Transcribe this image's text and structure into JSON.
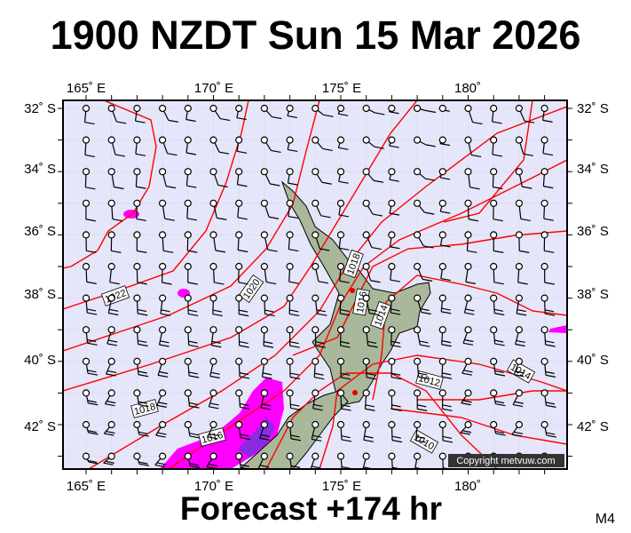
{
  "title": "1900 NZDT Sun 15 Mar 2026",
  "footer": "Forecast +174 hr",
  "model": "M4",
  "copyright": "Copyright metvuw.com",
  "axes": {
    "top_lon_labels": [
      "165˚ E",
      "170˚ E",
      "175˚ E",
      "180˚"
    ],
    "bottom_lon_labels": [
      "165˚ E",
      "170˚ E",
      "175˚ E",
      "180˚"
    ],
    "left_lat_labels": [
      "32˚ S",
      "34˚ S",
      "36˚ S",
      "38˚ S",
      "40˚ S",
      "42˚ S"
    ],
    "right_lat_labels": [
      "32˚ S",
      "34˚ S",
      "36˚ S",
      "38˚ S",
      "40˚ S",
      "42˚ S"
    ]
  },
  "isobar_labels": [
    "1022",
    "1020",
    "1018",
    "1018",
    "1016",
    "1016",
    "1014",
    "1014",
    "1012",
    "1010"
  ],
  "colors": {
    "sea": "#e6e6fa",
    "isobar": "#ff0000",
    "land": "#a9b89a",
    "rain_heavy": "#ff00ff",
    "rain_extreme": "#8a2be2",
    "city": "#e00000"
  }
}
